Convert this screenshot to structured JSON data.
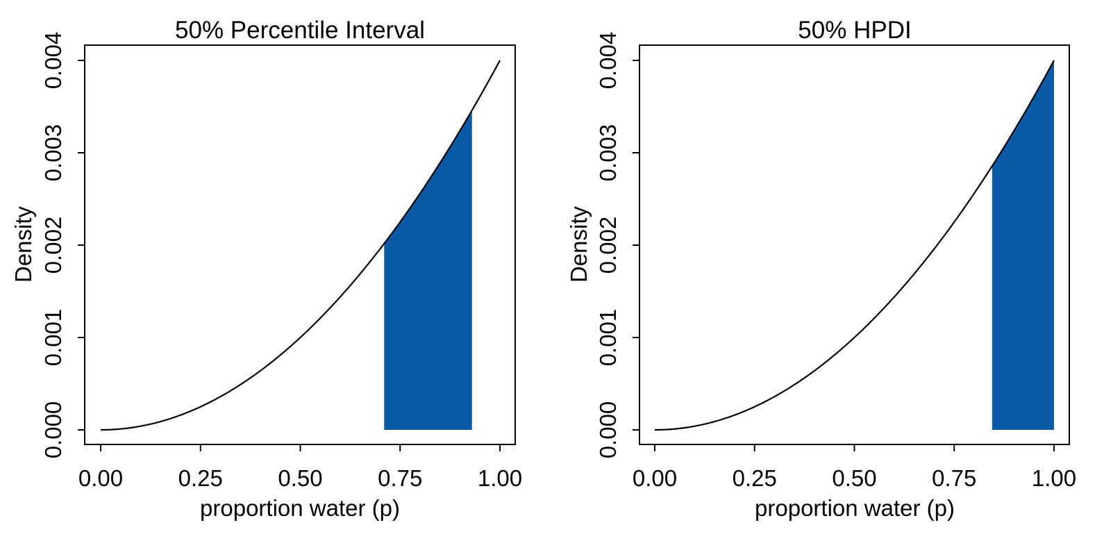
{
  "colors": {
    "shade": "#0b5aa8",
    "curve": "#000000",
    "frame": "#000000",
    "background": "#ffffff"
  },
  "chart_data": [
    {
      "type": "area",
      "title": "50% Percentile Interval",
      "xlabel": "proportion water (p)",
      "ylabel": "Density",
      "xlim": [
        0,
        1
      ],
      "ylim": [
        0,
        0.004
      ],
      "x_ticks": [
        "0.00",
        "0.25",
        "0.50",
        "0.75",
        "1.00"
      ],
      "y_ticks": [
        "0.000",
        "0.001",
        "0.002",
        "0.003",
        "0.004"
      ],
      "grid": false,
      "curve": {
        "x": [
          0.0,
          0.1,
          0.2,
          0.3,
          0.4,
          0.5,
          0.6,
          0.7,
          0.8,
          0.9,
          1.0
        ],
        "y": [
          0.0,
          4e-05,
          0.00016,
          0.00036,
          0.00064,
          0.001,
          0.00144,
          0.00196,
          0.00256,
          0.00324,
          0.004
        ]
      },
      "shaded_interval": [
        0.71,
        0.93
      ]
    },
    {
      "type": "area",
      "title": "50% HPDI",
      "xlabel": "proportion water (p)",
      "ylabel": "Density",
      "xlim": [
        0,
        1
      ],
      "ylim": [
        0,
        0.004
      ],
      "x_ticks": [
        "0.00",
        "0.25",
        "0.50",
        "0.75",
        "1.00"
      ],
      "y_ticks": [
        "0.000",
        "0.001",
        "0.002",
        "0.003",
        "0.004"
      ],
      "grid": false,
      "curve": {
        "x": [
          0.0,
          0.1,
          0.2,
          0.3,
          0.4,
          0.5,
          0.6,
          0.7,
          0.8,
          0.9,
          1.0
        ],
        "y": [
          0.0,
          4e-05,
          0.00016,
          0.00036,
          0.00064,
          0.001,
          0.00144,
          0.00196,
          0.00256,
          0.00324,
          0.004
        ]
      },
      "shaded_interval": [
        0.845,
        1.0
      ]
    }
  ]
}
